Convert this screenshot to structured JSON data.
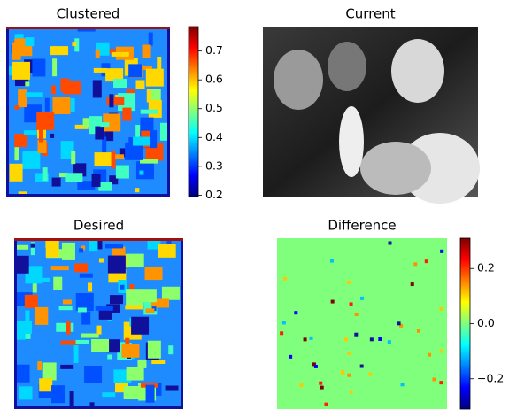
{
  "chart_data": [
    {
      "type": "image",
      "title": "Clustered",
      "colormap": "jet",
      "clim": [
        0.195,
        0.785
      ],
      "cticks": [
        0.2,
        0.3,
        0.4,
        0.5,
        0.6,
        0.7
      ]
    },
    {
      "type": "photo",
      "title": "Current"
    },
    {
      "type": "image",
      "title": "Desired"
    },
    {
      "type": "diff",
      "title": "Difference",
      "colormap": "jet",
      "clim": [
        -0.31,
        0.31
      ],
      "cticks": [
        {
          "value": 0.2,
          "label": "0.2"
        },
        {
          "value": 0,
          "label": "0.0"
        },
        {
          "value": -0.2,
          "label": "−0.2"
        }
      ]
    }
  ]
}
